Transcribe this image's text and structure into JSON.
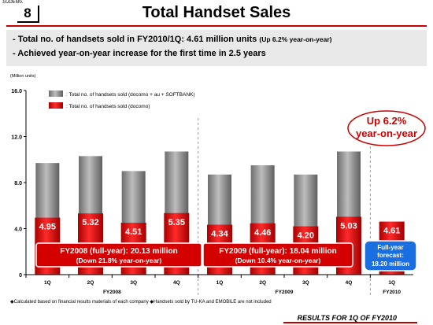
{
  "header": {
    "slide_label": "SUDEMo.",
    "slide_number": "8",
    "title": "Total Handset Sales"
  },
  "summary": {
    "bullet1_main": "- Total no. of handsets sold in FY2010/1Q: 4.61 million units",
    "bullet1_note": "(Up 6.2% year-on-year)",
    "bullet2": "- Achieved year-on-year increase for the first time in 2.5 years"
  },
  "footer": {
    "footnote": "◆Calculated based on financial results materials of each company  ◆Handsets sold by TU-KA and EMOBILE are not included",
    "results": "RESULTS FOR 1Q OF FY2010"
  },
  "colors": {
    "gray_series": "#8c8c8c",
    "red_series": "#d40000",
    "accent_red": "#cc0000",
    "forecast_blue": "#1a6fe0"
  },
  "chart_data": {
    "type": "bar",
    "yaxis_unit": "(Million units)",
    "ylim": [
      0,
      16
    ],
    "yticks": [
      "0",
      "4.0",
      "8.0",
      "12.0",
      "16.0"
    ],
    "grid": false,
    "legend_position": "top-left",
    "categories": [
      "1Q",
      "2Q",
      "3Q",
      "4Q",
      "1Q",
      "2Q",
      "3Q",
      "4Q",
      "1Q"
    ],
    "groups": [
      {
        "label": "FY2008",
        "start": 0,
        "end": 3
      },
      {
        "label": "FY2009",
        "start": 4,
        "end": 7
      },
      {
        "label": "FY2010",
        "start": 8,
        "end": 8
      }
    ],
    "series": [
      {
        "name": ": Total no. of handsets sold (docomo + au + SOFTBANK)",
        "values": [
          9.7,
          10.3,
          9.0,
          10.7,
          8.7,
          9.5,
          8.7,
          10.7,
          null
        ]
      },
      {
        "name": ": Total no. of handsets sold (docomo)",
        "values": [
          4.95,
          5.32,
          4.51,
          5.35,
          4.34,
          4.46,
          4.2,
          5.03,
          4.61
        ],
        "labels": [
          "4.95",
          "5.32",
          "4.51",
          "5.35",
          "4.34",
          "4.46",
          "4.20",
          "5.03",
          "4.61"
        ]
      }
    ],
    "annotations": {
      "callout_line1": "Up 6.2%",
      "callout_line2": "year-on-year",
      "fy2008_line1": "FY2008 (full-year): 20.13 million",
      "fy2008_line2": "(Down 21.8% year-on-year)",
      "fy2009_line1": "FY2009 (full-year): 18.04 million",
      "fy2009_line2": "(Down 10.4% year-on-year)",
      "forecast_line1": "Full-year",
      "forecast_line2": "forecast:",
      "forecast_line3": "18.20 million"
    }
  }
}
